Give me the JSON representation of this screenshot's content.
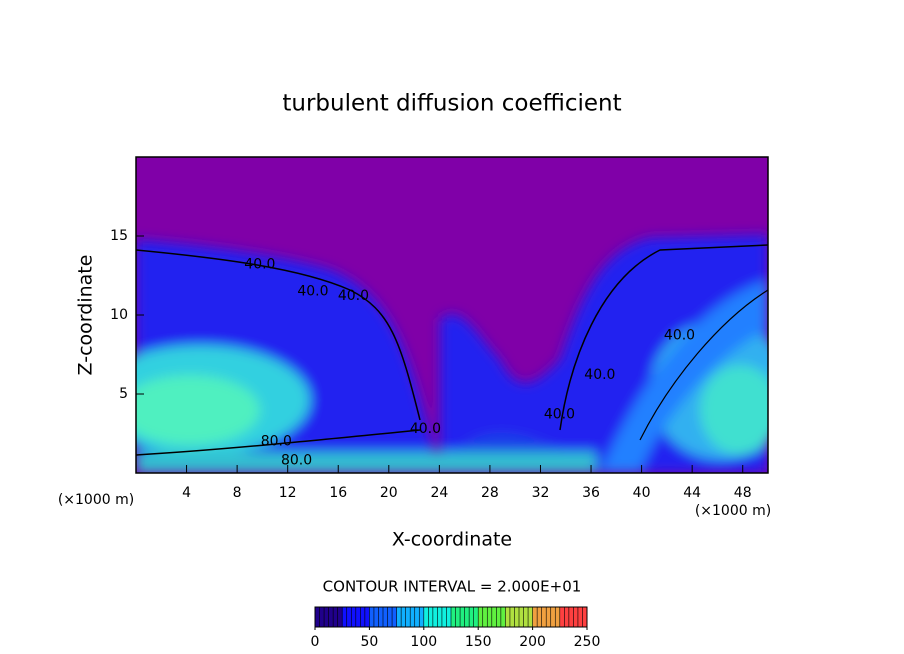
{
  "chart_data": {
    "type": "contour",
    "title": "turbulent diffusion coefficient",
    "x_label": "X-coordinate",
    "y_label": "Z-coordinate",
    "x_unit": "(×1000 m)",
    "y_unit": "(×1000 m)",
    "xlim": [
      0,
      50
    ],
    "xticks": [
      4,
      8,
      12,
      16,
      20,
      24,
      28,
      32,
      36,
      40,
      44,
      48
    ],
    "ylim": [
      0,
      20
    ],
    "yticks": [
      5,
      10,
      15
    ],
    "background_color": "#8000a8",
    "contour_interval": "CONTOUR INTERVAL = 2.000E+01",
    "contour_labels": {
      "x": [
        9.8,
        14.0,
        17.2,
        11.1,
        12.7,
        22.9,
        33.5,
        36.7,
        43.0
      ],
      "y": [
        13.2,
        11.5,
        11.2,
        2.0,
        0.8,
        2.8,
        3.7,
        6.2,
        8.7
      ],
      "values": [
        40,
        40,
        40,
        80,
        80,
        40,
        40,
        40,
        40
      ],
      "value_labels": [
        "40.0",
        "40.0",
        "40.0",
        "80.0",
        "80.0",
        "40.0",
        "40.0",
        "40.0",
        "40.0"
      ]
    },
    "colorbar": {
      "lim": [
        0,
        250
      ],
      "ticks": [
        0,
        50,
        100,
        150,
        200,
        250
      ],
      "colors": [
        "#20008c",
        "#1010ff",
        "#1060ff",
        "#10b0ff",
        "#10f0e0",
        "#20f080",
        "#60f040",
        "#b0e040",
        "#f0a040",
        "#ff4040"
      ]
    }
  }
}
